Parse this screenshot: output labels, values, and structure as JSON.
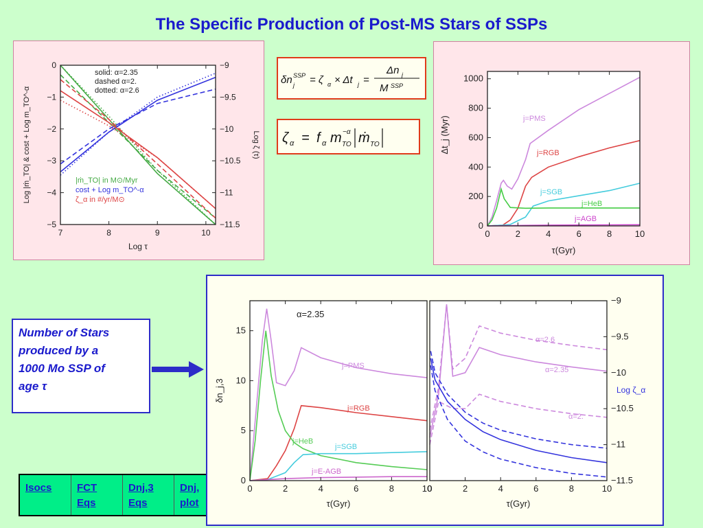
{
  "page_title": "The Specific Production of Post-MS Stars of SSPs",
  "note": {
    "line1": "Number of Stars",
    "line2": "produced by a",
    "line3": "1000 Mo SSP of",
    "line4": "age τ"
  },
  "formulas": {
    "eq1": "δn_j^SSP = ζ_α × Δt_j = Δn_j / M^SSP",
    "eq2": "ζ_α = f_α m_TO^-α |ṁ_TO|"
  },
  "nav": {
    "items": [
      {
        "line1": "Isocs",
        "line2": ""
      },
      {
        "line1": "FCT",
        "line2": "Eqs"
      },
      {
        "line1": "Dnj,3",
        "line2": "Eqs"
      },
      {
        "line1": "Dnj,",
        "line2": "plot"
      }
    ]
  },
  "colors": {
    "title": "#1a1acc",
    "green": "#44aa44",
    "blue": "#3333dd",
    "red": "#dd4444",
    "magenta": "#cc88dd",
    "cyan": "#44ccdd",
    "panel_pink": "#ffe6ea",
    "panel_cream": "#fffff0",
    "nav": "#00ee88"
  },
  "chart_data": [
    {
      "type": "line",
      "id": "topleft",
      "xlabel": "Log τ",
      "ylabel_left": "Log |ṁ_TO| & cost + Log m_TO^-α",
      "ylabel_right": "Log ζ (τ)",
      "x_ticks": [
        "7",
        "8",
        "9",
        "10"
      ],
      "xlim": [
        7,
        10.2
      ],
      "y_ticks_left": [
        "0",
        "−1",
        "−2",
        "−3",
        "−4",
        "−5"
      ],
      "ylim_left": [
        -5,
        0
      ],
      "y_ticks_right": [
        "−9",
        "−9.5",
        "−10",
        "−10.5",
        "−11",
        "−11.5"
      ],
      "ylim_right": [
        -11.5,
        -9
      ],
      "style_legend": {
        "solid": "solid: α=2.35",
        "dashed": "dashed α=2.",
        "dotted": "dotted: α=2.6"
      },
      "series_legend": [
        {
          "label": "|ṁ_TO| in M⊙/Myr",
          "color": "#44aa44"
        },
        {
          "label": "cost + Log m_TO^-α",
          "color": "#3333dd"
        },
        {
          "label": "ζ_α in #/yr/M⊙",
          "color": "#dd4444"
        }
      ],
      "series": [
        {
          "color": "#44aa44",
          "dash": "solid",
          "x": [
            7,
            8,
            9,
            10.2
          ],
          "y": [
            0.0,
            -1.7,
            -3.4,
            -5.0
          ]
        },
        {
          "color": "#44aa44",
          "dash": "dashed",
          "x": [
            7,
            8,
            9,
            10.2
          ],
          "y": [
            -0.3,
            -1.8,
            -3.3,
            -4.8
          ]
        },
        {
          "color": "#44aa44",
          "dash": "dotted",
          "x": [
            7,
            8,
            9,
            10.2
          ],
          "y": [
            0.0,
            -1.6,
            -3.3,
            -5.0
          ]
        },
        {
          "color": "#3333dd",
          "dash": "solid",
          "x": [
            7,
            8,
            9,
            10.2
          ],
          "y": [
            -3.35,
            -2.1,
            -1.1,
            -0.38
          ]
        },
        {
          "color": "#3333dd",
          "dash": "dashed",
          "x": [
            7,
            8,
            9,
            10.2
          ],
          "y": [
            -3.1,
            -2.0,
            -1.2,
            -0.75
          ]
        },
        {
          "color": "#3333dd",
          "dash": "dotted",
          "x": [
            7,
            8,
            9,
            10.2
          ],
          "y": [
            -3.45,
            -2.1,
            -1.0,
            -0.25
          ]
        },
        {
          "color": "#dd4444",
          "dash": "solid",
          "x": [
            7,
            8,
            9,
            10.2
          ],
          "y": [
            -0.8,
            -1.8,
            -2.9,
            -4.5
          ]
        },
        {
          "color": "#dd4444",
          "dash": "dashed",
          "x": [
            7,
            8,
            9,
            10.2
          ],
          "y": [
            -0.45,
            -1.7,
            -3.1,
            -4.8
          ]
        },
        {
          "color": "#dd4444",
          "dash": "dotted",
          "x": [
            7,
            8,
            9,
            10.2
          ],
          "y": [
            -1.1,
            -1.9,
            -2.9,
            -4.5
          ]
        }
      ]
    },
    {
      "type": "line",
      "id": "topright",
      "xlabel": "τ(Gyr)",
      "ylabel": "Δt_j (Myr)",
      "x_ticks": [
        "0",
        "2",
        "4",
        "6",
        "8",
        "10"
      ],
      "xlim": [
        0,
        10
      ],
      "y_ticks": [
        "0",
        "200",
        "400",
        "600",
        "800",
        "1000"
      ],
      "ylim": [
        0,
        1050
      ],
      "series": [
        {
          "name": "j=PMS",
          "color": "#cc88dd",
          "x": [
            0,
            0.3,
            0.6,
            0.9,
            1.05,
            1.3,
            1.6,
            2.0,
            2.5,
            2.8,
            4,
            6,
            8,
            10
          ],
          "y": [
            0,
            60,
            170,
            290,
            310,
            270,
            250,
            320,
            450,
            560,
            650,
            790,
            900,
            1010
          ]
        },
        {
          "name": "j=RGB",
          "color": "#dd4444",
          "x": [
            0,
            1,
            1.5,
            2.0,
            2.5,
            2.9,
            4,
            6,
            8,
            10
          ],
          "y": [
            0,
            5,
            40,
            120,
            270,
            330,
            400,
            470,
            530,
            580
          ]
        },
        {
          "name": "j=SGB",
          "color": "#44ccdd",
          "x": [
            0,
            1,
            1.5,
            2.5,
            3.0,
            4,
            6,
            8,
            10
          ],
          "y": [
            0,
            5,
            10,
            60,
            135,
            170,
            205,
            240,
            290
          ]
        },
        {
          "name": "j=HeB",
          "color": "#44cc44",
          "x": [
            0,
            0.3,
            0.6,
            0.9,
            1.1,
            1.5,
            2.5,
            4,
            6,
            8,
            10
          ],
          "y": [
            0,
            40,
            120,
            250,
            185,
            125,
            120,
            122,
            122,
            122,
            122
          ]
        },
        {
          "name": "j=AGB",
          "color": "#cc44cc",
          "x": [
            0,
            2,
            4,
            6,
            8,
            10
          ],
          "y": [
            0,
            3,
            5,
            6,
            7,
            8
          ]
        }
      ]
    },
    {
      "type": "line",
      "id": "bottomleft",
      "title": "α=2.35",
      "xlabel": "τ(Gyr)",
      "ylabel": "δn_j,3",
      "x_ticks": [
        "0",
        "2",
        "4",
        "6",
        "8",
        "10"
      ],
      "xlim": [
        0,
        10
      ],
      "y_ticks": [
        "0",
        "5",
        "10",
        "15"
      ],
      "ylim": [
        0,
        18
      ],
      "series": [
        {
          "name": "j=PMS",
          "color": "#cc88dd",
          "x": [
            0,
            0.4,
            0.7,
            0.95,
            1.2,
            1.5,
            2.0,
            2.5,
            2.9,
            4,
            6,
            8,
            10
          ],
          "y": [
            0,
            8,
            14,
            17.2,
            14,
            9.8,
            9.5,
            11,
            13.3,
            12.3,
            11.3,
            10.7,
            10.3
          ]
        },
        {
          "name": "j=RGB",
          "color": "#dd4444",
          "x": [
            0,
            1,
            1.5,
            2.0,
            2.5,
            2.9,
            4,
            6,
            8,
            10
          ],
          "y": [
            0,
            0.2,
            1.5,
            3.0,
            5.2,
            7.5,
            7.3,
            6.8,
            6.4,
            6.0
          ]
        },
        {
          "name": "j=HeB",
          "color": "#55cc55",
          "x": [
            0,
            0.3,
            0.6,
            0.9,
            1.2,
            1.6,
            2.0,
            2.5,
            3.0,
            4,
            6,
            8,
            10
          ],
          "y": [
            0,
            4,
            10,
            15.0,
            10.5,
            7.0,
            5.0,
            3.8,
            3.2,
            2.5,
            1.8,
            1.4,
            1.1
          ]
        },
        {
          "name": "j=SGB",
          "color": "#44ccdd",
          "x": [
            0,
            1,
            2.0,
            2.5,
            3.0,
            4,
            6,
            8,
            10
          ],
          "y": [
            0,
            0.1,
            0.8,
            1.8,
            2.6,
            2.7,
            2.7,
            2.8,
            2.9
          ]
        },
        {
          "name": "j=E-AGB",
          "color": "#cc66cc",
          "x": [
            0,
            2,
            4,
            6,
            8,
            10
          ],
          "y": [
            0,
            0.2,
            0.3,
            0.35,
            0.4,
            0.4
          ]
        }
      ],
      "labels": [
        "j=PMS",
        "j=RGB",
        "j=HeB",
        "j=SGB",
        "j=E-AGB"
      ]
    },
    {
      "type": "line",
      "id": "bottomright",
      "xlabel": "τ(Gyr)",
      "ylabel_right": "Log ζ_α",
      "x_ticks": [
        "0",
        "2",
        "4",
        "6",
        "8",
        "10"
      ],
      "xlim": [
        0,
        10
      ],
      "y_ticks_right": [
        "−9",
        "−9.5",
        "−10",
        "−10.5",
        "−11",
        "−11.5"
      ],
      "ylim_right": [
        -11.5,
        -9
      ],
      "annotations": [
        "α=2.6",
        "α=2.35",
        "α=2."
      ],
      "series": [
        {
          "name": "α=2.6",
          "color": "#cc88dd",
          "dash": "dashed",
          "x": [
            0,
            0.5,
            0.95,
            1.3,
            2.0,
            2.8,
            4,
            6,
            8,
            10
          ],
          "y": [
            -10.8,
            -10.2,
            -9.05,
            -9.95,
            -9.8,
            -9.35,
            -9.45,
            -9.55,
            -9.62,
            -9.68
          ]
        },
        {
          "name": "α=2.35",
          "color": "#cc88dd",
          "dash": "solid",
          "x": [
            0,
            0.5,
            0.95,
            1.3,
            2.0,
            2.8,
            4,
            6,
            8,
            10
          ],
          "y": [
            -10.9,
            -10.3,
            -9.05,
            -10.05,
            -10.0,
            -9.65,
            -9.75,
            -9.85,
            -9.92,
            -9.98
          ]
        },
        {
          "name": "α=2.",
          "color": "#cc88dd",
          "dash": "dashed",
          "x": [
            0,
            0.5,
            1.3,
            2.0,
            2.8,
            4,
            6,
            8,
            10
          ],
          "y": [
            -11.0,
            -10.4,
            -10.5,
            -10.5,
            -10.3,
            -10.4,
            -10.5,
            -10.57,
            -10.62
          ]
        },
        {
          "name": "Log ζ α=2.6",
          "color": "#3333dd",
          "dash": "dashed",
          "x": [
            0.05,
            0.3,
            1,
            2,
            3,
            4,
            6,
            8,
            10
          ],
          "y": [
            -9.7,
            -10.0,
            -10.3,
            -10.55,
            -10.7,
            -10.8,
            -10.92,
            -11.0,
            -11.05
          ]
        },
        {
          "name": "Log ζ α=2.35",
          "color": "#3333dd",
          "dash": "solid",
          "x": [
            0.05,
            0.3,
            1,
            2,
            3,
            4,
            6,
            8,
            10
          ],
          "y": [
            -9.8,
            -10.1,
            -10.4,
            -10.65,
            -10.82,
            -10.93,
            -11.08,
            -11.18,
            -11.25
          ]
        },
        {
          "name": "Log ζ α=2.",
          "color": "#3333dd",
          "dash": "dashed",
          "x": [
            0.05,
            0.3,
            1,
            2,
            3,
            4,
            6,
            8,
            10
          ],
          "y": [
            -9.9,
            -10.25,
            -10.65,
            -10.95,
            -11.1,
            -11.2,
            -11.32,
            -11.4,
            -11.45
          ]
        }
      ]
    }
  ]
}
